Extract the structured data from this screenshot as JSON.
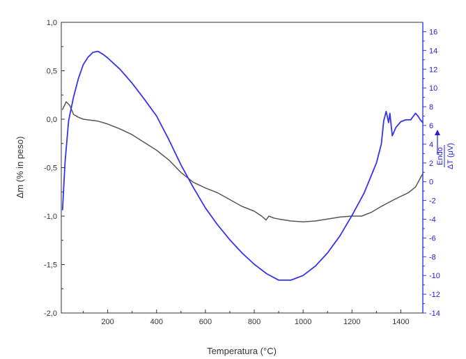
{
  "chart_data": {
    "type": "line",
    "xlabel": "Temperatura (°C)",
    "ylabel_left": "Δm (% in peso)",
    "ylabel_right_fraction_top": "Endo",
    "ylabel_right_fraction_bottom": "ΔT (μV)",
    "xlim": [
      10,
      1490
    ],
    "ylim_left": [
      -2.0,
      1.0
    ],
    "ylim_right": [
      -14,
      17
    ],
    "x_ticks": [
      200,
      400,
      600,
      800,
      1000,
      1200,
      1400
    ],
    "x_tick_labels": [
      "200",
      "400",
      "600",
      "800",
      "1000",
      "1200",
      "1400"
    ],
    "y_left_ticks": [
      1.0,
      0.5,
      0.0,
      -0.5,
      -1.0,
      -1.5,
      -2.0
    ],
    "y_left_tick_labels": [
      "1,0",
      "0,5",
      "0,0",
      "-0,5",
      "-1,0",
      "-1,5",
      "-2,0"
    ],
    "y_right_ticks": [
      16,
      14,
      12,
      10,
      8,
      6,
      4,
      2,
      0,
      -2,
      -4,
      -6,
      -8,
      -10,
      -12,
      -14
    ],
    "y_right_tick_labels": [
      "16",
      "14",
      "12",
      "10",
      "8",
      "6",
      "4",
      "2",
      "0",
      "-2",
      "-4",
      "-6",
      "-8",
      "-10",
      "-12",
      "-14"
    ],
    "grid": false,
    "series": [
      {
        "axis": "left",
        "color": "#555555",
        "points": [
          [
            15,
            0.1
          ],
          [
            30,
            0.18
          ],
          [
            45,
            0.14
          ],
          [
            60,
            0.05
          ],
          [
            80,
            0.02
          ],
          [
            100,
            0.0
          ],
          [
            130,
            -0.01
          ],
          [
            160,
            -0.02
          ],
          [
            200,
            -0.05
          ],
          [
            250,
            -0.1
          ],
          [
            300,
            -0.16
          ],
          [
            350,
            -0.24
          ],
          [
            400,
            -0.32
          ],
          [
            450,
            -0.42
          ],
          [
            500,
            -0.55
          ],
          [
            550,
            -0.65
          ],
          [
            600,
            -0.71
          ],
          [
            650,
            -0.76
          ],
          [
            700,
            -0.83
          ],
          [
            750,
            -0.9
          ],
          [
            800,
            -0.95
          ],
          [
            830,
            -1.0
          ],
          [
            848,
            -1.04
          ],
          [
            860,
            -1.0
          ],
          [
            880,
            -1.02
          ],
          [
            900,
            -1.03
          ],
          [
            950,
            -1.05
          ],
          [
            1000,
            -1.06
          ],
          [
            1050,
            -1.05
          ],
          [
            1100,
            -1.03
          ],
          [
            1150,
            -1.01
          ],
          [
            1200,
            -1.0
          ],
          [
            1240,
            -1.0
          ],
          [
            1280,
            -0.96
          ],
          [
            1320,
            -0.9
          ],
          [
            1380,
            -0.82
          ],
          [
            1430,
            -0.76
          ],
          [
            1460,
            -0.7
          ],
          [
            1490,
            -0.56
          ]
        ]
      },
      {
        "axis": "right",
        "color": "#3333ee",
        "points": [
          [
            15,
            -3
          ],
          [
            25,
            2
          ],
          [
            40,
            6.5
          ],
          [
            60,
            9
          ],
          [
            80,
            11
          ],
          [
            100,
            12.5
          ],
          [
            120,
            13.3
          ],
          [
            140,
            13.8
          ],
          [
            160,
            13.9
          ],
          [
            180,
            13.6
          ],
          [
            200,
            13.2
          ],
          [
            250,
            12.0
          ],
          [
            300,
            10.5
          ],
          [
            350,
            8.8
          ],
          [
            400,
            7.0
          ],
          [
            450,
            4.5
          ],
          [
            500,
            1.8
          ],
          [
            550,
            -0.6
          ],
          [
            600,
            -2.8
          ],
          [
            650,
            -4.6
          ],
          [
            700,
            -6.2
          ],
          [
            750,
            -7.6
          ],
          [
            800,
            -8.8
          ],
          [
            850,
            -9.8
          ],
          [
            900,
            -10.5
          ],
          [
            950,
            -10.5
          ],
          [
            1000,
            -10.0
          ],
          [
            1050,
            -9.0
          ],
          [
            1100,
            -7.6
          ],
          [
            1150,
            -5.8
          ],
          [
            1200,
            -3.6
          ],
          [
            1250,
            -1.2
          ],
          [
            1300,
            2.0
          ],
          [
            1320,
            4.0
          ],
          [
            1330,
            6.5
          ],
          [
            1340,
            7.5
          ],
          [
            1350,
            6.3
          ],
          [
            1355,
            7.3
          ],
          [
            1365,
            4.9
          ],
          [
            1380,
            5.8
          ],
          [
            1400,
            6.4
          ],
          [
            1420,
            6.6
          ],
          [
            1440,
            6.6
          ],
          [
            1460,
            7.3
          ],
          [
            1470,
            7.0
          ],
          [
            1480,
            6.6
          ],
          [
            1490,
            6.3
          ]
        ]
      }
    ]
  }
}
